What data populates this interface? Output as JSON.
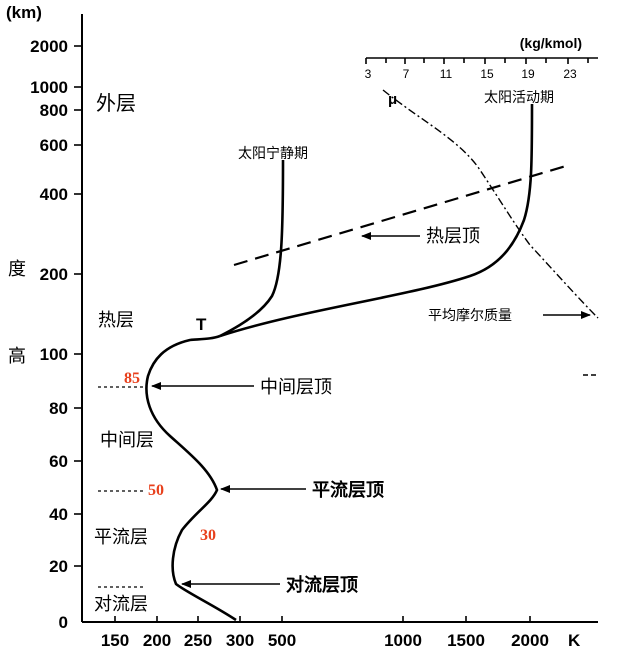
{
  "y_axis": {
    "unit": "(km)",
    "ticks": [
      "2000",
      "1000",
      "800",
      "600",
      "400",
      "200",
      "100",
      "80",
      "60",
      "40",
      "20",
      "0"
    ],
    "label_chars": [
      "度",
      "高"
    ]
  },
  "x_axis": {
    "ticks": [
      "150",
      "200",
      "250",
      "300",
      "500",
      "1000",
      "1500",
      "2000"
    ],
    "unit": "K"
  },
  "mu_axis": {
    "unit": "(kg/kmol)",
    "ticks": [
      "3",
      "7",
      "11",
      "15",
      "19",
      "23"
    ],
    "symbol": "μ"
  },
  "layers": {
    "exosphere": "外层",
    "thermosphere": "热层",
    "mesosphere": "中间层",
    "stratosphere": "平流层",
    "troposphere": "对流层"
  },
  "annotations": {
    "solar_quiet": "太阳宁静期",
    "solar_active": "太阳活动期",
    "thermopause": "热层顶",
    "mean_molar_mass": "平均摩尔质量",
    "mesopause": "中间层顶",
    "stratopause": "平流层顶",
    "tropopause": "对流层顶",
    "temp_symbol": "T"
  },
  "boundary_heights": {
    "mesopause_km": "85",
    "stratopause_km": "50",
    "tropopause_km": "30"
  }
}
